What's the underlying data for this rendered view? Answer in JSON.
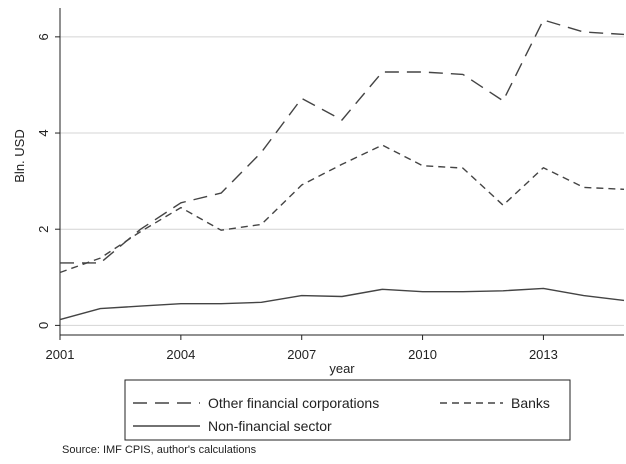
{
  "chart_data": {
    "type": "line",
    "title": "",
    "xlabel": "year",
    "ylabel": "Bln. USD",
    "x": [
      2001,
      2002,
      2003,
      2004,
      2005,
      2006,
      2007,
      2008,
      2009,
      2010,
      2011,
      2012,
      2013,
      2014,
      2015
    ],
    "xlim": [
      2001,
      2015
    ],
    "ylim": [
      -0.2,
      6.6
    ],
    "xticks": [
      2001,
      2004,
      2007,
      2010,
      2013
    ],
    "xtick_labels": [
      "2001",
      "2004",
      "2007",
      "2010",
      "2013"
    ],
    "yticks": [
      0,
      2,
      4,
      6
    ],
    "ytick_labels": [
      "0",
      "2",
      "4",
      "6"
    ],
    "grid": true,
    "legend_placement": "bottom",
    "series": [
      {
        "name": "Other financial corporations",
        "style": "long-dash",
        "values": [
          1.3,
          1.3,
          2.0,
          2.55,
          2.75,
          3.6,
          4.72,
          4.27,
          5.27,
          5.27,
          5.22,
          4.67,
          6.35,
          6.1,
          6.05
        ]
      },
      {
        "name": "Banks",
        "style": "short-dash",
        "values": [
          1.1,
          1.4,
          1.95,
          2.45,
          1.98,
          2.1,
          2.92,
          3.35,
          3.75,
          3.32,
          3.27,
          2.5,
          3.28,
          2.87,
          2.83
        ]
      },
      {
        "name": "Non-financial sector",
        "style": "solid",
        "values": [
          0.12,
          0.35,
          0.4,
          0.45,
          0.45,
          0.48,
          0.62,
          0.6,
          0.75,
          0.7,
          0.7,
          0.72,
          0.77,
          0.62,
          0.52
        ]
      }
    ],
    "source": "Source: IMF CPIS, author's calculations"
  },
  "colors": {
    "line": "#444444",
    "grid": "#d4d4d4",
    "axis": "#222222"
  }
}
